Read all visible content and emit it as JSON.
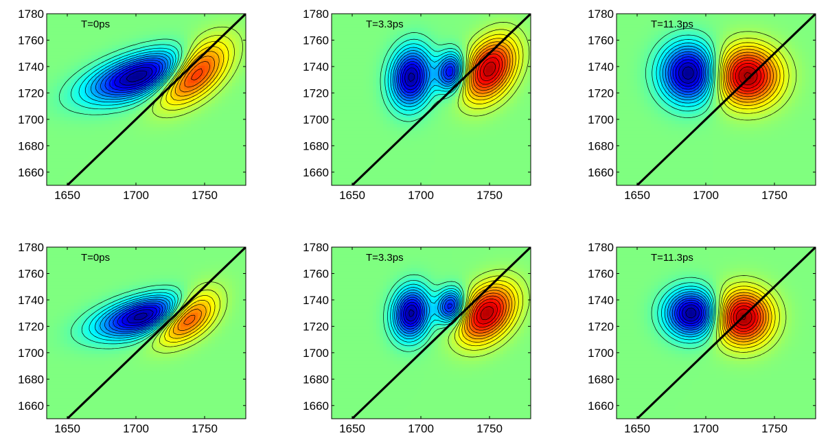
{
  "chart_data": [
    {
      "type": "heatmap",
      "title": "T=0ps",
      "xlim": [
        1635,
        1780
      ],
      "ylim": [
        1650,
        1780
      ],
      "x_ticks": [
        1650,
        1700,
        1750
      ],
      "y_ticks": [
        1660,
        1680,
        1700,
        1720,
        1740,
        1760,
        1780
      ],
      "diagonal": true,
      "peaks": [
        {
          "x": 1703,
          "y": 1733,
          "amplitude": -1.0,
          "sx": 26,
          "sy": 13,
          "rho": 0.55
        },
        {
          "x": 1742,
          "y": 1736,
          "amplitude": 0.85,
          "sx": 17,
          "sy": 16,
          "rho": 0.55
        }
      ]
    },
    {
      "type": "heatmap",
      "title": "T=3.3ps",
      "xlim": [
        1635,
        1780
      ],
      "ylim": [
        1650,
        1780
      ],
      "x_ticks": [
        1650,
        1700,
        1750
      ],
      "y_ticks": [
        1660,
        1680,
        1700,
        1720,
        1740,
        1760,
        1780
      ],
      "diagonal": true,
      "peaks": [
        {
          "x": 1693,
          "y": 1732,
          "amplitude": -0.95,
          "sx": 10,
          "sy": 15,
          "rho": 0.1
        },
        {
          "x": 1722,
          "y": 1736,
          "amplitude": -0.8,
          "sx": 7,
          "sy": 10,
          "rho": 0.1
        },
        {
          "x": 1750,
          "y": 1738,
          "amplitude": 0.9,
          "sx": 13,
          "sy": 16,
          "rho": 0.35
        }
      ]
    },
    {
      "type": "heatmap",
      "title": "T=11.3ps",
      "xlim": [
        1635,
        1780
      ],
      "ylim": [
        1650,
        1780
      ],
      "x_ticks": [
        1650,
        1700,
        1750
      ],
      "y_ticks": [
        1660,
        1680,
        1700,
        1720,
        1740,
        1760,
        1780
      ],
      "diagonal": true,
      "peaks": [
        {
          "x": 1688,
          "y": 1735,
          "amplitude": -1.0,
          "sx": 14,
          "sy": 15,
          "rho": 0.0
        },
        {
          "x": 1730,
          "y": 1733,
          "amplitude": 0.95,
          "sx": 16,
          "sy": 15,
          "rho": 0.0
        }
      ]
    },
    {
      "type": "heatmap",
      "title": "T=0ps",
      "xlim": [
        1635,
        1780
      ],
      "ylim": [
        1650,
        1780
      ],
      "x_ticks": [
        1650,
        1700,
        1750
      ],
      "y_ticks": [
        1660,
        1680,
        1700,
        1720,
        1740,
        1760,
        1780
      ],
      "diagonal": true,
      "peaks": [
        {
          "x": 1707,
          "y": 1728,
          "amplitude": -1.0,
          "sx": 24,
          "sy": 11,
          "rho": 0.5
        },
        {
          "x": 1737,
          "y": 1728,
          "amplitude": 0.85,
          "sx": 15,
          "sy": 13,
          "rho": 0.5
        }
      ]
    },
    {
      "type": "heatmap",
      "title": "T=3.3ps",
      "xlim": [
        1635,
        1780
      ],
      "ylim": [
        1650,
        1780
      ],
      "x_ticks": [
        1650,
        1700,
        1750
      ],
      "y_ticks": [
        1660,
        1680,
        1700,
        1720,
        1740,
        1760,
        1780
      ],
      "diagonal": true,
      "peaks": [
        {
          "x": 1693,
          "y": 1730,
          "amplitude": -0.95,
          "sx": 9,
          "sy": 13,
          "rho": 0.1
        },
        {
          "x": 1722,
          "y": 1735,
          "amplitude": -0.8,
          "sx": 7,
          "sy": 9,
          "rho": 0.1
        },
        {
          "x": 1748,
          "y": 1730,
          "amplitude": 0.9,
          "sx": 14,
          "sy": 15,
          "rho": 0.35
        }
      ]
    },
    {
      "type": "heatmap",
      "title": "T=11.3ps",
      "xlim": [
        1635,
        1780
      ],
      "ylim": [
        1650,
        1780
      ],
      "x_ticks": [
        1650,
        1700,
        1750
      ],
      "y_ticks": [
        1660,
        1680,
        1700,
        1720,
        1740,
        1760,
        1780
      ],
      "diagonal": true,
      "peaks": [
        {
          "x": 1690,
          "y": 1730,
          "amplitude": -1.0,
          "sx": 13,
          "sy": 12,
          "rho": 0.0
        },
        {
          "x": 1727,
          "y": 1727,
          "amplitude": 0.95,
          "sx": 14,
          "sy": 14,
          "rho": 0.0
        }
      ]
    }
  ]
}
